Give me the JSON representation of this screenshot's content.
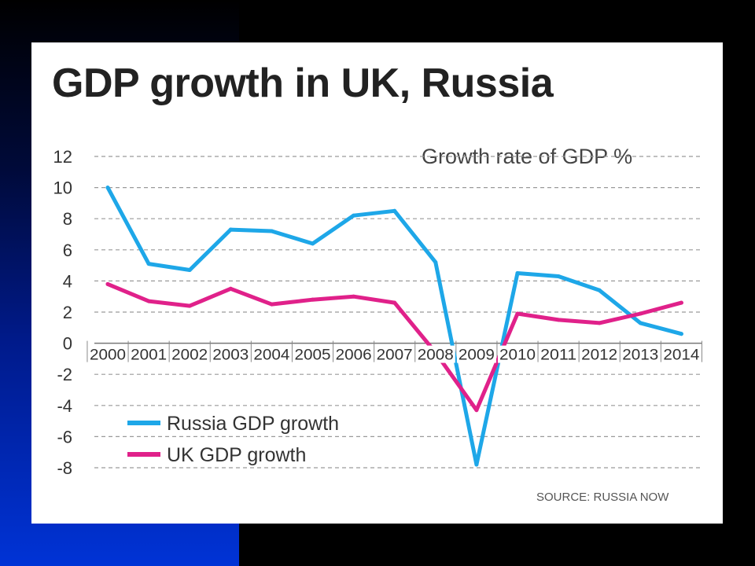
{
  "chart_data": {
    "type": "line",
    "title": "GDP growth in UK, Russia",
    "subtitle": "Growth rate of GDP %",
    "source": "SOURCE: RUSSIA NOW",
    "categories": [
      "2000",
      "2001",
      "2002",
      "2003",
      "2004",
      "2005",
      "2006",
      "2007",
      "2008",
      "2009",
      "2010",
      "2011",
      "2012",
      "2013",
      "2014"
    ],
    "ylim": [
      -8,
      12
    ],
    "yticks": [
      "12",
      "10",
      "8",
      "6",
      "4",
      "2",
      "0",
      "-2",
      "-4",
      "-6",
      "-8"
    ],
    "grid": true,
    "legend_placement": "bottom-left",
    "series": [
      {
        "name": "Russia GDP growth",
        "color": "#1ea7e8",
        "values": [
          10.0,
          5.1,
          4.7,
          7.3,
          7.2,
          6.4,
          8.2,
          8.5,
          5.2,
          -7.8,
          4.5,
          4.3,
          3.4,
          1.3,
          0.6
        ]
      },
      {
        "name": "UK GDP growth",
        "color": "#e0218a",
        "values": [
          3.8,
          2.7,
          2.4,
          3.5,
          2.5,
          2.8,
          3.0,
          2.6,
          -0.6,
          -4.3,
          1.9,
          1.5,
          1.3,
          1.9,
          2.6
        ]
      }
    ]
  }
}
